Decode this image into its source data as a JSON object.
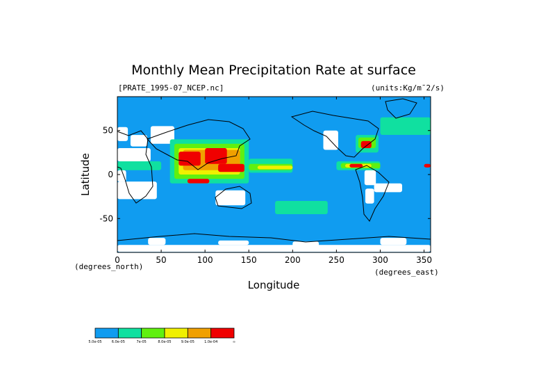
{
  "chart_data": {
    "type": "heatmap",
    "title": "Monthly Mean Precipitation Rate at surface",
    "file_label": "[PRATE_1995-07_NCEP.nc]",
    "units_label": "(units:Kg/m¯2/s)",
    "xlabel": "Longitude",
    "ylabel": "Latitude",
    "x_unit_label": "(degrees_east)",
    "y_unit_label": "(degrees_north)",
    "xlim": [
      0,
      357.5
    ],
    "ylim": [
      -88.5,
      88.5
    ],
    "x_ticks": [
      0,
      50,
      100,
      150,
      200,
      250,
      300,
      350
    ],
    "y_ticks": [
      50,
      0,
      -50
    ],
    "colorbar": {
      "colors": [
        "#109cf0",
        "#10e0a0",
        "#60f010",
        "#f0f000",
        "#f0a000",
        "#f00000"
      ],
      "tick_labels": [
        "5.0e-05",
        "6.0e-05",
        "7e-05",
        "8.0e-05",
        "9.0e-05",
        "1.0e-04",
        "∞"
      ]
    },
    "regions": [
      {
        "level": "missing",
        "lon": [
          0,
          12
        ],
        "lat": [
          38,
          54
        ]
      },
      {
        "level": "missing",
        "lon": [
          15,
          34
        ],
        "lat": [
          32,
          45
        ]
      },
      {
        "level": "missing",
        "lon": [
          38,
          65
        ],
        "lat": [
          35,
          55
        ]
      },
      {
        "level": "missing",
        "lon": [
          0,
          38
        ],
        "lat": [
          15,
          30
        ]
      },
      {
        "level": "missing",
        "lon": [
          0,
          10
        ],
        "lat": [
          -8,
          5
        ]
      },
      {
        "level": "missing",
        "lon": [
          0,
          45
        ],
        "lat": [
          -28,
          -8
        ]
      },
      {
        "level": "missing",
        "lon": [
          112,
          146
        ],
        "lat": [
          -35,
          -18
        ]
      },
      {
        "level": "missing",
        "lon": [
          235,
          252
        ],
        "lat": [
          28,
          50
        ]
      },
      {
        "level": "missing",
        "lon": [
          282,
          295
        ],
        "lat": [
          -12,
          5
        ]
      },
      {
        "level": "missing",
        "lon": [
          283,
          293
        ],
        "lat": [
          -33,
          -16
        ]
      },
      {
        "level": "missing",
        "lon": [
          293,
          325
        ],
        "lat": [
          -20,
          -10
        ]
      },
      {
        "level": "missing",
        "lon": [
          0,
          360
        ],
        "lat": [
          -88,
          -80
        ]
      },
      {
        "level": "missing",
        "lon": [
          35,
          55
        ],
        "lat": [
          -80,
          -72
        ]
      },
      {
        "level": "missing",
        "lon": [
          115,
          150
        ],
        "lat": [
          -80,
          -75
        ]
      },
      {
        "level": "missing",
        "lon": [
          200,
          230
        ],
        "lat": [
          -82,
          -76
        ]
      },
      {
        "level": "missing",
        "lon": [
          300,
          330
        ],
        "lat": [
          -80,
          -72
        ]
      },
      {
        "level": 1,
        "lon": [
          60,
          150
        ],
        "lat": [
          -10,
          40
        ]
      },
      {
        "level": 1,
        "lon": [
          150,
          200
        ],
        "lat": [
          2,
          18
        ]
      },
      {
        "level": 1,
        "lon": [
          250,
          300
        ],
        "lat": [
          5,
          15
        ]
      },
      {
        "level": 1,
        "lon": [
          272,
          298
        ],
        "lat": [
          25,
          45
        ]
      },
      {
        "level": 1,
        "lon": [
          300,
          360
        ],
        "lat": [
          45,
          65
        ]
      },
      {
        "level": 1,
        "lon": [
          180,
          240
        ],
        "lat": [
          -45,
          -30
        ]
      },
      {
        "level": 1,
        "lon": [
          0,
          50
        ],
        "lat": [
          5,
          15
        ]
      },
      {
        "level": 2,
        "lon": [
          65,
          145
        ],
        "lat": [
          -5,
          35
        ]
      },
      {
        "level": 2,
        "lon": [
          150,
          200
        ],
        "lat": [
          5,
          12
        ]
      },
      {
        "level": 2,
        "lon": [
          255,
          300
        ],
        "lat": [
          7,
          13
        ]
      },
      {
        "level": 2,
        "lon": [
          275,
          295
        ],
        "lat": [
          30,
          42
        ]
      },
      {
        "level": 3,
        "lon": [
          70,
          140
        ],
        "lat": [
          0,
          30
        ]
      },
      {
        "level": 3,
        "lon": [
          160,
          200
        ],
        "lat": [
          6,
          10
        ]
      },
      {
        "level": 3,
        "lon": [
          260,
          290
        ],
        "lat": [
          8,
          12
        ]
      },
      {
        "level": 4,
        "lon": [
          75,
          140
        ],
        "lat": [
          5,
          28
        ]
      },
      {
        "level": 5,
        "lon": [
          70,
          95
        ],
        "lat": [
          10,
          26
        ]
      },
      {
        "level": 5,
        "lon": [
          100,
          125
        ],
        "lat": [
          12,
          30
        ]
      },
      {
        "level": 5,
        "lon": [
          115,
          145
        ],
        "lat": [
          3,
          12
        ]
      },
      {
        "level": 5,
        "lon": [
          80,
          105
        ],
        "lat": [
          -10,
          -5
        ]
      },
      {
        "level": 5,
        "lon": [
          265,
          280
        ],
        "lat": [
          8,
          12
        ]
      },
      {
        "level": 5,
        "lon": [
          278,
          290
        ],
        "lat": [
          30,
          38
        ]
      },
      {
        "level": 5,
        "lon": [
          350,
          360
        ],
        "lat": [
          8,
          12
        ]
      }
    ]
  }
}
